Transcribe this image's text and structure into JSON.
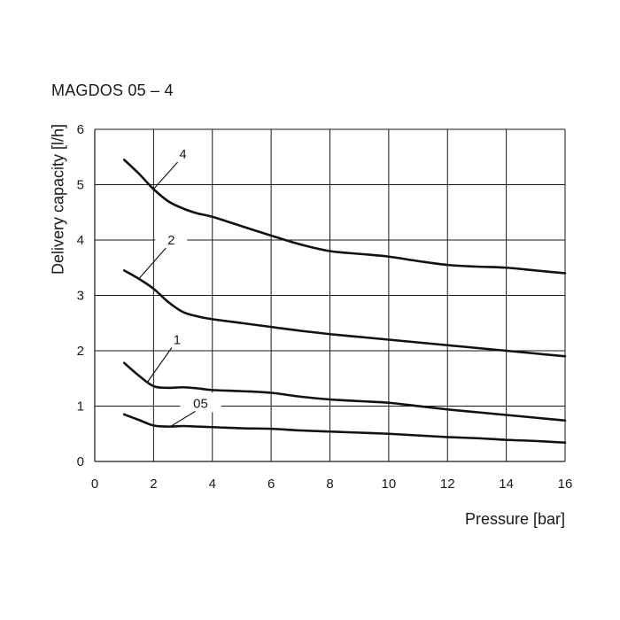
{
  "chart_data": {
    "type": "line",
    "title": "MAGDOS 05 – 4",
    "xlabel": "Pressure [bar]",
    "ylabel": "Delivery capacity [l/h]",
    "xlim": [
      0,
      16
    ],
    "ylim": [
      0,
      6
    ],
    "xticks": [
      "0",
      "2",
      "4",
      "6",
      "8",
      "10",
      "12",
      "14",
      "16"
    ],
    "yticks": [
      "0",
      "1",
      "2",
      "3",
      "4",
      "5",
      "6"
    ],
    "grid": true,
    "series": [
      {
        "name": "4",
        "x": [
          1,
          1.5,
          2,
          2.5,
          3,
          3.5,
          4,
          5,
          6,
          7,
          8,
          9,
          10,
          11,
          12,
          13,
          14,
          15,
          16
        ],
        "y": [
          5.45,
          5.2,
          4.92,
          4.7,
          4.57,
          4.48,
          4.42,
          4.25,
          4.08,
          3.92,
          3.8,
          3.75,
          3.7,
          3.62,
          3.55,
          3.52,
          3.5,
          3.45,
          3.4
        ]
      },
      {
        "name": "2",
        "x": [
          1,
          1.5,
          2,
          2.5,
          3,
          3.5,
          4,
          5,
          6,
          7,
          8,
          9,
          10,
          11,
          12,
          13,
          14,
          15,
          16
        ],
        "y": [
          3.45,
          3.3,
          3.12,
          2.88,
          2.7,
          2.62,
          2.57,
          2.5,
          2.43,
          2.36,
          2.3,
          2.25,
          2.2,
          2.15,
          2.1,
          2.05,
          2.0,
          1.95,
          1.9
        ]
      },
      {
        "name": "1",
        "x": [
          1,
          1.5,
          2,
          2.5,
          3,
          3.5,
          4,
          5,
          6,
          7,
          8,
          9,
          10,
          11,
          12,
          13,
          14,
          15,
          16
        ],
        "y": [
          1.78,
          1.55,
          1.36,
          1.33,
          1.34,
          1.32,
          1.29,
          1.27,
          1.24,
          1.17,
          1.12,
          1.09,
          1.06,
          1.0,
          0.94,
          0.89,
          0.84,
          0.79,
          0.74
        ]
      },
      {
        "name": "05",
        "x": [
          1,
          1.5,
          2,
          2.5,
          3,
          3.5,
          4,
          5,
          6,
          7,
          8,
          9,
          10,
          11,
          12,
          13,
          14,
          15,
          16
        ],
        "y": [
          0.85,
          0.75,
          0.65,
          0.63,
          0.64,
          0.63,
          0.62,
          0.6,
          0.59,
          0.56,
          0.54,
          0.52,
          0.5,
          0.47,
          0.44,
          0.42,
          0.39,
          0.37,
          0.34
        ]
      }
    ],
    "series_labels": [
      {
        "text": "4",
        "x": 3.0,
        "y": 5.55,
        "leader_to": [
          2.0,
          4.92
        ]
      },
      {
        "text": "2",
        "x": 2.6,
        "y": 4.0,
        "leader_to": [
          1.5,
          3.3
        ]
      },
      {
        "text": "1",
        "x": 2.8,
        "y": 2.2,
        "leader_to": [
          1.8,
          1.44
        ]
      },
      {
        "text": "05",
        "x": 3.6,
        "y": 1.05,
        "leader_to": [
          2.6,
          0.64
        ]
      }
    ]
  }
}
